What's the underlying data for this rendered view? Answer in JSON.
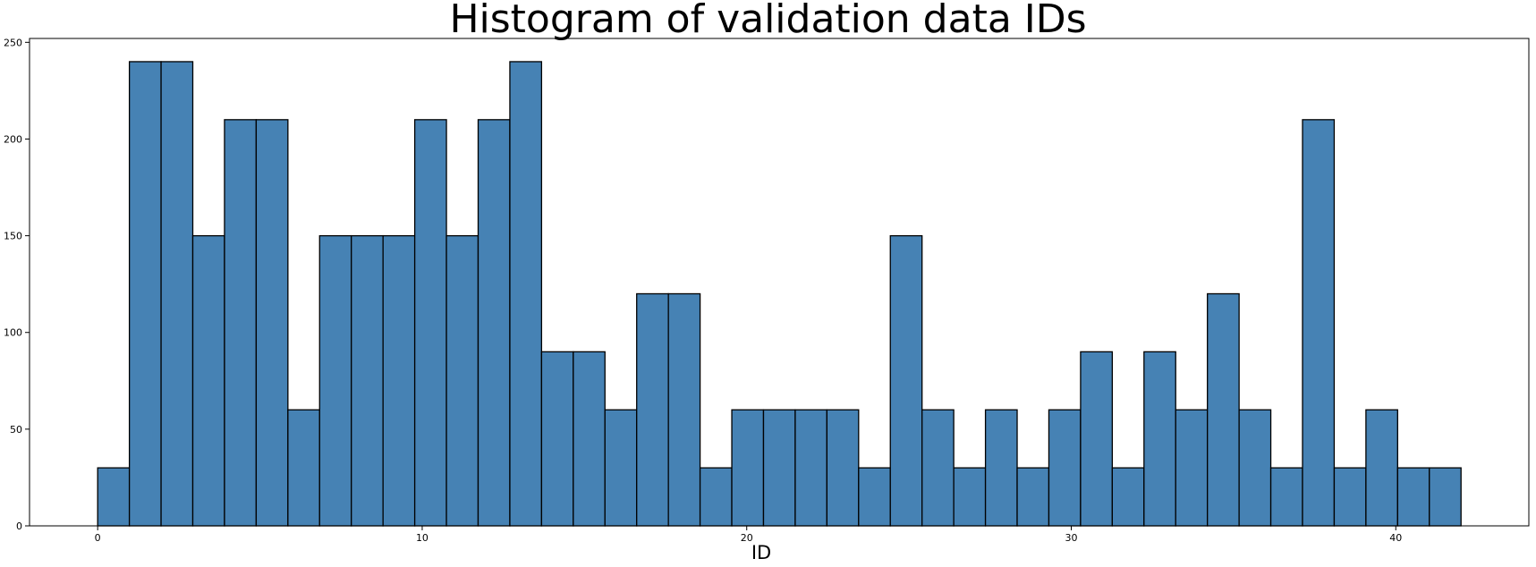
{
  "chart_data": {
    "type": "bar",
    "title": "Histogram of validation data IDs",
    "xlabel": "ID",
    "ylabel": "",
    "xlim": [
      -2.1,
      44.1
    ],
    "ylim": [
      0,
      252
    ],
    "grid": false,
    "bar_color": "#4682b4",
    "edge_color": "#000000",
    "bin_start": 0,
    "bin_width": 0.977,
    "x_ticks": [
      0,
      10,
      20,
      30,
      40
    ],
    "y_ticks": [
      0,
      50,
      100,
      150,
      200,
      250
    ],
    "values": [
      30,
      240,
      240,
      150,
      210,
      210,
      60,
      150,
      150,
      150,
      210,
      150,
      210,
      240,
      90,
      90,
      60,
      120,
      120,
      30,
      60,
      60,
      60,
      60,
      30,
      150,
      60,
      30,
      60,
      30,
      60,
      90,
      30,
      90,
      60,
      120,
      60,
      30,
      210,
      30,
      60,
      30,
      30
    ]
  }
}
